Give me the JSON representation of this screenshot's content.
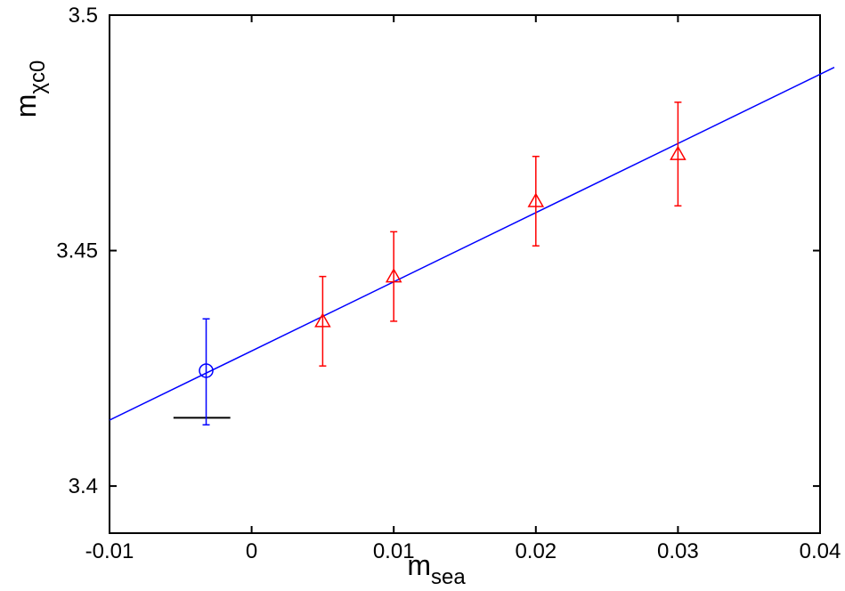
{
  "chart_data": {
    "type": "scatter",
    "xlim": [
      -0.01,
      0.04
    ],
    "ylim": [
      3.39,
      3.5
    ],
    "xticks": [
      -0.01,
      0,
      0.01,
      0.02,
      0.03,
      0.04
    ],
    "xtick_labels": [
      "-0.01",
      "0",
      "0.01",
      "0.02",
      "0.03",
      "0.04"
    ],
    "yticks": [
      3.4,
      3.45,
      3.5
    ],
    "ytick_labels": [
      "3.4",
      "3.45",
      "3.5"
    ],
    "xlabel": {
      "main": "m",
      "sub": "sea"
    },
    "ylabel": {
      "main": "m",
      "sub": "χc0"
    },
    "grid": false,
    "legend": "none",
    "series": [
      {
        "marker": "triangle",
        "color": "#ff0000",
        "points": [
          {
            "x": 0.005,
            "y": 3.435,
            "yerr": 0.0095
          },
          {
            "x": 0.01,
            "y": 3.4445,
            "yerr": 0.0095
          },
          {
            "x": 0.02,
            "y": 3.4605,
            "yerr": 0.0095
          },
          {
            "x": 0.03,
            "y": 3.4705,
            "yerr": 0.011
          }
        ]
      },
      {
        "marker": "circle",
        "color": "#0000ff",
        "points": [
          {
            "x": -0.0032,
            "y": 3.4245,
            "yerr_up": 0.011,
            "yerr_down": 0.0115
          }
        ]
      }
    ],
    "fit_line": {
      "color": "#0000ff",
      "x": [
        -0.01,
        0.041
      ],
      "y": [
        3.414,
        3.4889
      ]
    },
    "reference_bar": {
      "color": "#000000",
      "x": [
        -0.0055,
        -0.0015
      ],
      "y": 3.4145
    }
  }
}
